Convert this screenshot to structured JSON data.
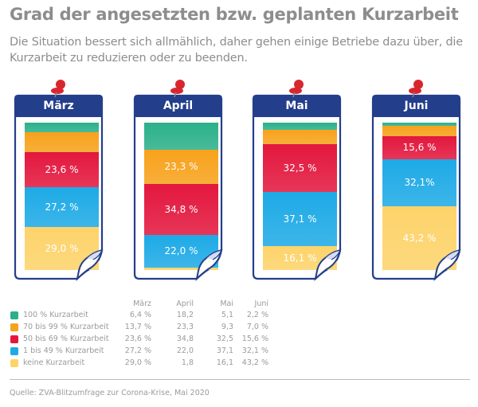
{
  "header": {
    "title": "Grad der angesetzten bzw. geplanten Kurzarbeit",
    "subtitle": "Die Situation bessert sich allmählich, daher gehen einige Betriebe dazu über, die Kurzarbeit zu reduzieren oder zu beenden."
  },
  "chart_data": {
    "type": "bar",
    "stacked": true,
    "title": "Grad der angesetzten bzw. geplanten Kurzarbeit",
    "subtitle": "Die Situation bessert sich allmählich, daher gehen einige Betriebe dazu über, die Kurzarbeit zu reduzieren oder zu beenden.",
    "categories": [
      "März",
      "April",
      "Mai",
      "Juni"
    ],
    "unit": "%",
    "ylim": [
      0,
      100
    ],
    "series": [
      {
        "name": "100 % Kurzarbeit",
        "color": "#2bb08a",
        "values": [
          6.4,
          18.2,
          5.1,
          2.2
        ]
      },
      {
        "name": "70 bis 99 % Kurzarbeit",
        "color": "#f7a21b",
        "values": [
          13.7,
          23.3,
          9.3,
          7.0
        ]
      },
      {
        "name": "50 bis 69 % Kurzarbeit",
        "color": "#e3173e",
        "values": [
          23.6,
          34.8,
          32.5,
          15.6
        ]
      },
      {
        "name": "1 bis 49 % Kurzarbeit",
        "color": "#1eaae6",
        "values": [
          27.2,
          22.0,
          37.1,
          32.1
        ]
      },
      {
        "name": "keine Kurzarbeit",
        "color": "#fdd36a",
        "values": [
          29.0,
          1.8,
          16.1,
          43.2
        ]
      }
    ],
    "bar_labels": [
      [
        "",
        "",
        "23,6 %",
        "27,2 %",
        "29,0 %"
      ],
      [
        "",
        "23,3 %",
        "34,8 %",
        "22,0 %",
        ""
      ],
      [
        "",
        "",
        "32,5 %",
        "37,1 %",
        "16,1 %"
      ],
      [
        "",
        "",
        "15,6 %",
        "32,1%",
        "43,2 %"
      ]
    ],
    "legend": "bottom-left table"
  },
  "table": {
    "headers": [
      "März",
      "April",
      "Mai",
      "Juni"
    ],
    "rows": [
      {
        "label": "100 % Kurzarbeit",
        "values": [
          "6,4 %",
          "18,2",
          "5,1",
          "2,2 %"
        ]
      },
      {
        "label": "70 bis 99 % Kurzarbeit",
        "values": [
          "13,7 %",
          "23,3",
          "9,3",
          "7,0 %"
        ]
      },
      {
        "label": "50 bis 69 % Kurzarbeit",
        "values": [
          "23,6 %",
          "34,8",
          "32,5",
          "15,6 %"
        ]
      },
      {
        "label": "1 bis 49 % Kurzarbeit",
        "values": [
          "27,2 %",
          "22,0",
          "37,1",
          "32,1 %"
        ]
      },
      {
        "label": "keine Kurzarbeit",
        "values": [
          "29,0 %",
          "1,8",
          "16,1",
          "43,2 %"
        ]
      }
    ]
  },
  "footer": {
    "source": "Quelle: ZVA-Blitzumfrage zur Corona-Krise, Mai 2020"
  },
  "colors": {
    "frame": "#233e8b",
    "pin": "#d9262e",
    "text_gray": "#8d8d8d"
  }
}
